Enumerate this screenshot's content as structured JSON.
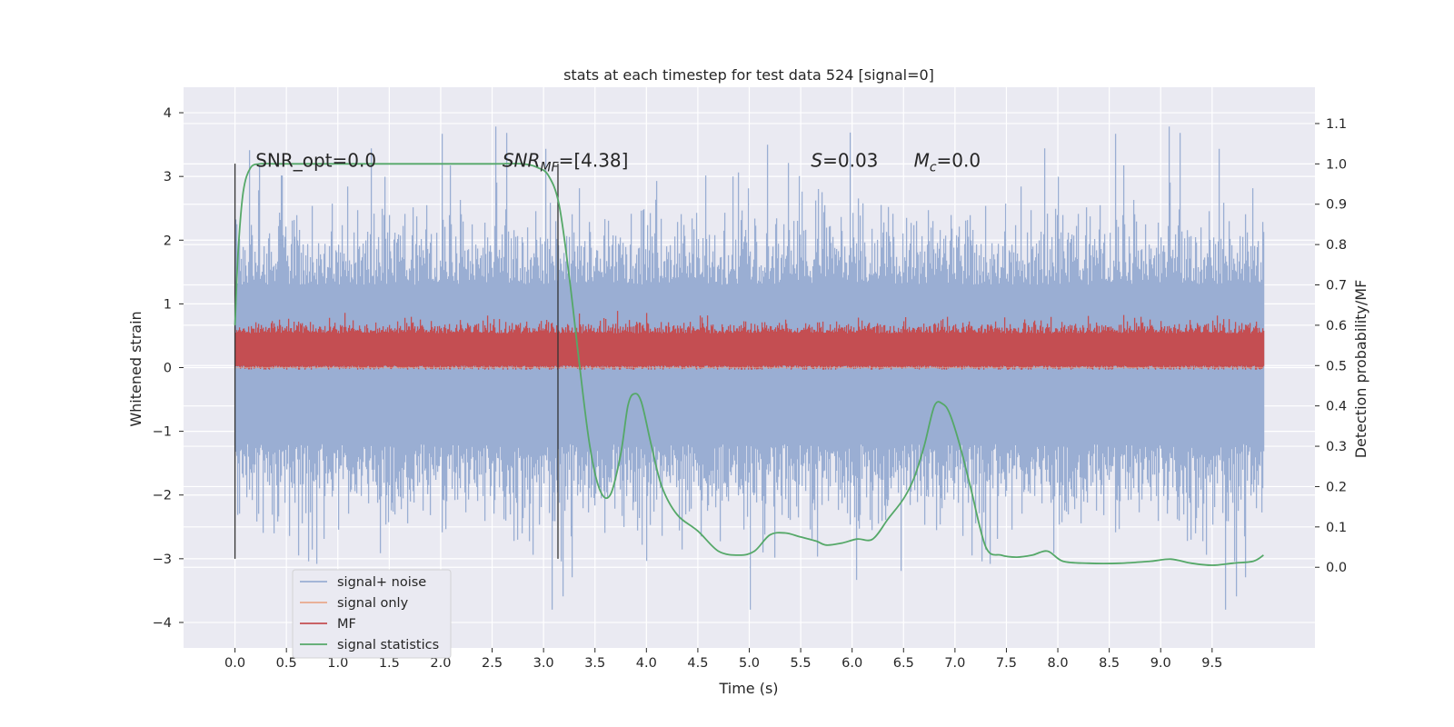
{
  "chart_data": {
    "type": "line",
    "title": "stats at each timestep for test data 524 [signal=0]",
    "xlabel": "Time (s)",
    "ylabel": "Whitened strain",
    "y2label": "Detection probability/MF",
    "xlim": [
      -0.5,
      10.5
    ],
    "ylim": [
      -4.4,
      4.4
    ],
    "y2lim": [
      -0.2,
      1.19
    ],
    "x_ticks": [
      "0.0",
      "0.5",
      "1.0",
      "1.5",
      "2.0",
      "2.5",
      "3.0",
      "3.5",
      "4.0",
      "4.5",
      "5.0",
      "5.5",
      "6.0",
      "6.5",
      "7.0",
      "7.5",
      "8.0",
      "8.5",
      "9.0",
      "9.5"
    ],
    "x_tick_values": [
      0.0,
      0.5,
      1.0,
      1.5,
      2.0,
      2.5,
      3.0,
      3.5,
      4.0,
      4.5,
      5.0,
      5.5,
      6.0,
      6.5,
      7.0,
      7.5,
      8.0,
      8.5,
      9.0,
      9.5
    ],
    "y_ticks": [
      "4",
      "3",
      "2",
      "1",
      "0",
      "−1",
      "−2",
      "−3",
      "−4"
    ],
    "y_tick_values": [
      4,
      3,
      2,
      1,
      0,
      -1,
      -2,
      -3,
      -4
    ],
    "y2_ticks": [
      "1.1",
      "1.0",
      "0.9",
      "0.8",
      "0.7",
      "0.6",
      "0.5",
      "0.4",
      "0.3",
      "0.2",
      "0.1",
      "0.0"
    ],
    "y2_tick_values": [
      1.1,
      1.0,
      0.9,
      0.8,
      0.7,
      0.6,
      0.5,
      0.4,
      0.3,
      0.2,
      0.1,
      0.0
    ],
    "grid": true,
    "legend_position": "lower-left",
    "annotations": [
      {
        "text": "SNR_opt=0.0",
        "x": 0.2,
        "y2": 1.0
      },
      {
        "text": "SNR",
        "sub": "MF",
        "rest": "=[4.38]",
        "x": 2.6,
        "y2": 1.0
      },
      {
        "text": "S",
        "rest": "=0.03",
        "x": 5.6,
        "y2": 1.0
      },
      {
        "text": "M",
        "sub": "c",
        "rest": "=0.0",
        "x": 6.6,
        "y2": 1.0
      }
    ],
    "vlines": [
      {
        "x": 0.0,
        "y_from": -3.0,
        "y_to": 3.2
      },
      {
        "x": 3.14,
        "y_from": -3.0,
        "y_to": 3.2
      }
    ],
    "series": [
      {
        "name": "signal+ noise",
        "color": "#9aaed3",
        "axis": "left",
        "description_kind": "noise-band",
        "x_range": [
          0.0,
          10.0
        ],
        "band": {
          "core_low": -1.2,
          "core_high": 1.3,
          "peak_low": -3.8,
          "peak_high": 4.05
        }
      },
      {
        "name": "signal only",
        "color": "#e9a98c",
        "axis": "left",
        "x": [
          0.0,
          10.0
        ],
        "values": [
          0.0,
          0.0
        ]
      },
      {
        "name": "MF",
        "color": "#c44e52",
        "axis": "right",
        "description_kind": "noise-band",
        "x_range": [
          0.0,
          10.0
        ],
        "band": {
          "core_low": 0.5,
          "core_high": 0.58,
          "peak_low": 0.49,
          "peak_high": 0.64
        }
      },
      {
        "name": "signal statistics",
        "color": "#55a868",
        "axis": "right",
        "x": [
          0.0,
          0.03,
          0.08,
          0.15,
          0.25,
          0.4,
          0.6,
          1.0,
          1.5,
          2.0,
          2.5,
          2.8,
          2.95,
          3.05,
          3.15,
          3.25,
          3.35,
          3.45,
          3.55,
          3.65,
          3.75,
          3.82,
          3.88,
          3.95,
          4.05,
          4.15,
          4.3,
          4.5,
          4.7,
          4.9,
          5.05,
          5.2,
          5.35,
          5.5,
          5.65,
          5.75,
          5.9,
          6.05,
          6.2,
          6.35,
          6.5,
          6.6,
          6.7,
          6.8,
          6.88,
          6.95,
          7.05,
          7.15,
          7.3,
          7.45,
          7.6,
          7.75,
          7.9,
          8.05,
          8.3,
          8.6,
          8.9,
          9.1,
          9.3,
          9.5,
          9.7,
          9.9,
          10.0
        ],
        "values": [
          0.6,
          0.78,
          0.93,
          0.99,
          1.0,
          1.0,
          1.0,
          1.0,
          1.0,
          1.0,
          1.0,
          1.0,
          0.99,
          0.97,
          0.9,
          0.72,
          0.5,
          0.3,
          0.19,
          0.18,
          0.28,
          0.4,
          0.43,
          0.41,
          0.3,
          0.2,
          0.13,
          0.09,
          0.04,
          0.03,
          0.04,
          0.08,
          0.085,
          0.075,
          0.065,
          0.055,
          0.06,
          0.07,
          0.07,
          0.12,
          0.17,
          0.22,
          0.3,
          0.4,
          0.405,
          0.38,
          0.3,
          0.2,
          0.05,
          0.03,
          0.025,
          0.03,
          0.04,
          0.015,
          0.01,
          0.01,
          0.015,
          0.02,
          0.01,
          0.005,
          0.01,
          0.015,
          0.03
        ]
      }
    ]
  }
}
